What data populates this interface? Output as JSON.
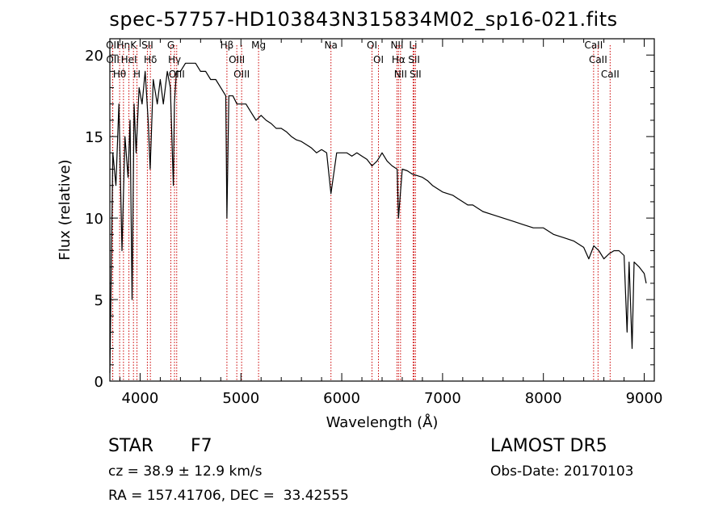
{
  "title": "spec-57757-HD103843N315834M02_sp16-021.fits",
  "info": {
    "obj_class": "STAR",
    "subclass": "F7",
    "survey": "LAMOST DR5",
    "cz": "cz = 38.9 ± 12.9 km/s",
    "obs_date": "Obs-Date: 20170103",
    "radec": "RA = 157.41706, DEC =  33.42555"
  },
  "chart_data": {
    "type": "line",
    "title": "spec-57757-HD103843N315834M02_sp16-021.fits",
    "xlabel": "Wavelength (Å)",
    "ylabel": "Flux (relative)",
    "xlim": [
      3700,
      9100
    ],
    "ylim": [
      0,
      21
    ],
    "xticks": [
      4000,
      5000,
      6000,
      7000,
      8000,
      9000
    ],
    "yticks": [
      0,
      5,
      10,
      15,
      20
    ],
    "grid": false,
    "line_color": "#000000",
    "marker_color": "#cc0000",
    "series": [
      {
        "x": [
          3700,
          3730,
          3760,
          3790,
          3820,
          3850,
          3880,
          3900,
          3920,
          3940,
          3960,
          3990,
          4020,
          4050,
          4080,
          4100,
          4130,
          4170,
          4200,
          4230,
          4270,
          4300,
          4330,
          4340,
          4360,
          4400,
          4450,
          4500,
          4550,
          4600,
          4650,
          4700,
          4750,
          4800,
          4850,
          4861,
          4880,
          4920,
          4960,
          5000,
          5050,
          5100,
          5150,
          5200,
          5250,
          5300,
          5350,
          5400,
          5450,
          5500,
          5550,
          5600,
          5650,
          5700,
          5750,
          5800,
          5850,
          5893,
          5950,
          6000,
          6050,
          6100,
          6150,
          6200,
          6250,
          6300,
          6350,
          6400,
          6450,
          6500,
          6550,
          6563,
          6600,
          6650,
          6700,
          6750,
          6800,
          6850,
          6900,
          6950,
          7000,
          7050,
          7100,
          7150,
          7200,
          7250,
          7300,
          7350,
          7400,
          7500,
          7600,
          7700,
          7800,
          7900,
          8000,
          8100,
          8200,
          8300,
          8400,
          8450,
          8500,
          8550,
          8600,
          8650,
          8700,
          8750,
          8800,
          8830,
          8850,
          8880,
          8900,
          8950,
          9000,
          9020
        ],
        "y": [
          0.5,
          14,
          12,
          17,
          8,
          15,
          12.5,
          16,
          5,
          17,
          14,
          18,
          17,
          19,
          16,
          13,
          18.5,
          17,
          18.5,
          17,
          19,
          18,
          12,
          17,
          19,
          19,
          19.5,
          19.5,
          19.5,
          19,
          19,
          18.5,
          18.5,
          18,
          17.5,
          10,
          17.5,
          17.5,
          17,
          17,
          17,
          16.5,
          16,
          16.3,
          16,
          15.8,
          15.5,
          15.5,
          15.3,
          15,
          14.8,
          14.7,
          14.5,
          14.3,
          14,
          14.2,
          14,
          11.5,
          14,
          14,
          14,
          13.8,
          14,
          13.8,
          13.6,
          13.2,
          13.5,
          14,
          13.5,
          13.2,
          13,
          10,
          13,
          12.9,
          12.7,
          12.6,
          12.5,
          12.3,
          12,
          11.8,
          11.6,
          11.5,
          11.4,
          11.2,
          11,
          10.8,
          10.8,
          10.6,
          10.4,
          10.2,
          10,
          9.8,
          9.6,
          9.4,
          9.4,
          9,
          8.8,
          8.6,
          8.2,
          7.5,
          8.3,
          8,
          7.5,
          7.8,
          8,
          8,
          7.7,
          3,
          7.3,
          2,
          7.3,
          7,
          6.6,
          6
        ]
      }
    ],
    "annotations": [
      {
        "label": "Hθ",
        "x": 3797
      },
      {
        "label": "OII",
        "x": 3727
      },
      {
        "label": "OII",
        "x": 3729
      },
      {
        "label": "Hη",
        "x": 3835
      },
      {
        "label": "HeI",
        "x": 3889
      },
      {
        "label": "K",
        "x": 3934
      },
      {
        "label": "H",
        "x": 3969
      },
      {
        "label": "SII",
        "x": 4072
      },
      {
        "label": "Hδ",
        "x": 4102
      },
      {
        "label": "OIII",
        "x": 4363
      },
      {
        "label": "Hγ",
        "x": 4341
      },
      {
        "label": "G",
        "x": 4305
      },
      {
        "label": "Hβ",
        "x": 4861
      },
      {
        "label": "OIII",
        "x": 4959
      },
      {
        "label": "OIII",
        "x": 5007
      },
      {
        "label": "Mg",
        "x": 5175
      },
      {
        "label": "Na",
        "x": 5893
      },
      {
        "label": "OI",
        "x": 6300
      },
      {
        "label": "OI",
        "x": 6364
      },
      {
        "label": "Hα",
        "x": 6563
      },
      {
        "label": "NII",
        "x": 6548
      },
      {
        "label": "NII",
        "x": 6583
      },
      {
        "label": "SII",
        "x": 6717
      },
      {
        "label": "Li",
        "x": 6708
      },
      {
        "label": "SII",
        "x": 6731
      },
      {
        "label": "CaII",
        "x": 8498
      },
      {
        "label": "CaII",
        "x": 8542
      },
      {
        "label": "CaII",
        "x": 8662
      }
    ]
  }
}
